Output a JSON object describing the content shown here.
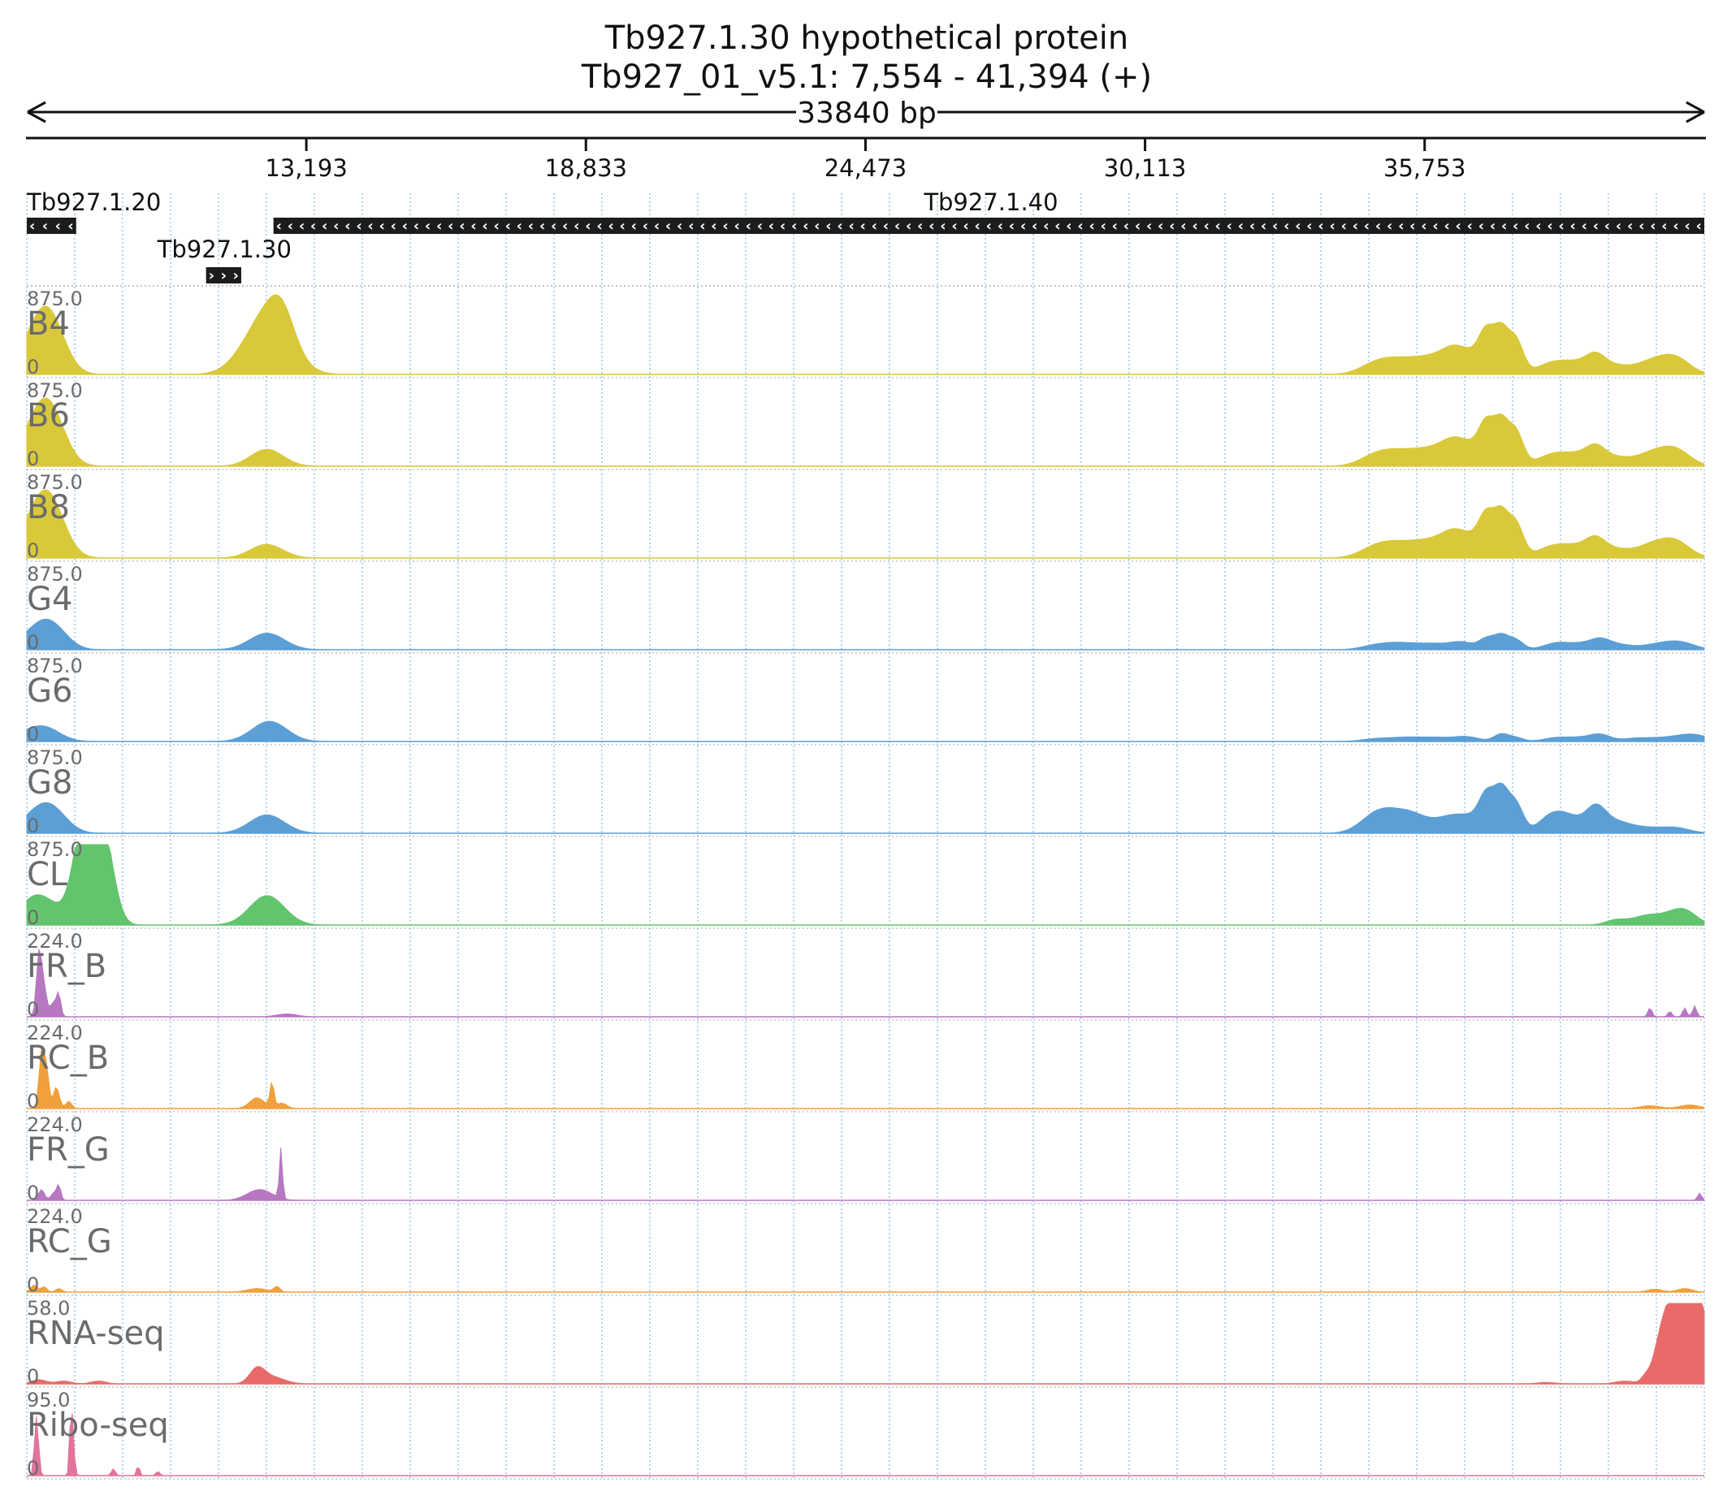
{
  "header": {
    "title": "Tb927.1.30  hypothetical protein",
    "subtitle": "Tb927_01_v5.1: 7,554 - 41,394 (+)",
    "span": "33840 bp"
  },
  "chart_data": {
    "type": "area",
    "x_range": [
      7554,
      41394
    ],
    "x_ticks": [
      {
        "value": 13193,
        "label": "13,193"
      },
      {
        "value": 18833,
        "label": "18,833"
      },
      {
        "value": 24473,
        "label": "24,473"
      },
      {
        "value": 30113,
        "label": "30,113"
      },
      {
        "value": 35753,
        "label": "35,753"
      }
    ],
    "genes": [
      {
        "name": "Tb927.1.20",
        "start": 7554,
        "end": 8550,
        "strand": "-",
        "row": 0
      },
      {
        "name": "Tb927.1.40",
        "start": 12530,
        "end": 41394,
        "strand": "-",
        "row": 0
      },
      {
        "name": "Tb927.1.30",
        "start": 11170,
        "end": 11880,
        "strand": "+",
        "row": 1
      }
    ],
    "tracks": [
      {
        "name": "B4",
        "max": 875.0,
        "max_label": "875.0",
        "min_label": "0",
        "color": "#d9c93a",
        "peaks": [
          [
            7800,
            450,
            350
          ],
          [
            8050,
            350,
            300
          ],
          [
            12400,
            650,
            450
          ],
          [
            12700,
            300,
            250
          ],
          [
            34700,
            90,
            300
          ],
          [
            35100,
            120,
            300
          ],
          [
            35600,
            130,
            300
          ],
          [
            36100,
            150,
            300
          ],
          [
            36400,
            180,
            250
          ],
          [
            36800,
            160,
            250
          ],
          [
            37000,
            350,
            150
          ],
          [
            37300,
            450,
            150
          ],
          [
            37600,
            350,
            150
          ],
          [
            38300,
            110,
            300
          ],
          [
            38800,
            110,
            300
          ],
          [
            39200,
            160,
            200
          ],
          [
            39600,
            90,
            300
          ],
          [
            40300,
            120,
            300
          ],
          [
            40800,
            180,
            300
          ]
        ]
      },
      {
        "name": "B6",
        "max": 875.0,
        "max_label": "875.0",
        "min_label": "0",
        "color": "#d9c93a",
        "peaks": [
          [
            7800,
            450,
            350
          ],
          [
            8050,
            350,
            300
          ],
          [
            12300,
            120,
            300
          ],
          [
            12550,
            80,
            300
          ],
          [
            34700,
            90,
            300
          ],
          [
            35100,
            120,
            300
          ],
          [
            35600,
            130,
            300
          ],
          [
            36100,
            150,
            300
          ],
          [
            36400,
            180,
            250
          ],
          [
            36800,
            160,
            250
          ],
          [
            37000,
            350,
            150
          ],
          [
            37300,
            450,
            150
          ],
          [
            37600,
            350,
            150
          ],
          [
            38300,
            110,
            300
          ],
          [
            38800,
            110,
            300
          ],
          [
            39200,
            160,
            200
          ],
          [
            39600,
            90,
            300
          ],
          [
            40300,
            120,
            300
          ],
          [
            40800,
            180,
            300
          ]
        ]
      },
      {
        "name": "B8",
        "max": 875.0,
        "max_label": "875.0",
        "min_label": "0",
        "color": "#d9c93a",
        "peaks": [
          [
            7800,
            450,
            350
          ],
          [
            8050,
            350,
            300
          ],
          [
            12300,
            100,
            300
          ],
          [
            12550,
            60,
            300
          ],
          [
            34700,
            90,
            300
          ],
          [
            35100,
            120,
            300
          ],
          [
            35600,
            130,
            300
          ],
          [
            36100,
            150,
            300
          ],
          [
            36400,
            180,
            250
          ],
          [
            36800,
            160,
            250
          ],
          [
            37000,
            350,
            150
          ],
          [
            37300,
            450,
            150
          ],
          [
            37600,
            350,
            150
          ],
          [
            38300,
            110,
            300
          ],
          [
            38800,
            110,
            300
          ],
          [
            39200,
            160,
            200
          ],
          [
            39600,
            90,
            300
          ],
          [
            40300,
            120,
            300
          ],
          [
            40800,
            180,
            300
          ]
        ]
      },
      {
        "name": "G4",
        "max": 875.0,
        "max_label": "875.0",
        "min_label": "0",
        "color": "#5b9fd6",
        "peaks": [
          [
            7800,
            220,
            350
          ],
          [
            8100,
            150,
            300
          ],
          [
            12400,
            180,
            350
          ],
          [
            34800,
            50,
            300
          ],
          [
            35300,
            60,
            300
          ],
          [
            35900,
            60,
            300
          ],
          [
            36500,
            80,
            250
          ],
          [
            37000,
            110,
            150
          ],
          [
            37300,
            150,
            150
          ],
          [
            37600,
            100,
            150
          ],
          [
            38400,
            70,
            250
          ],
          [
            38900,
            60,
            250
          ],
          [
            39300,
            100,
            200
          ],
          [
            39700,
            50,
            250
          ],
          [
            40400,
            50,
            300
          ],
          [
            40900,
            80,
            300
          ]
        ]
      },
      {
        "name": "G6",
        "max": 875.0,
        "max_label": "875.0",
        "min_label": "0",
        "color": "#5b9fd6",
        "peaks": [
          [
            7700,
            120,
            350
          ],
          [
            8000,
            70,
            300
          ],
          [
            12450,
            220,
            350
          ],
          [
            34800,
            30,
            300
          ],
          [
            35400,
            40,
            300
          ],
          [
            36000,
            40,
            300
          ],
          [
            36600,
            50,
            250
          ],
          [
            37300,
            80,
            150
          ],
          [
            37600,
            40,
            150
          ],
          [
            38400,
            40,
            250
          ],
          [
            38900,
            40,
            250
          ],
          [
            39300,
            70,
            200
          ],
          [
            40000,
            30,
            300
          ],
          [
            40700,
            40,
            400
          ],
          [
            41200,
            60,
            300
          ]
        ]
      },
      {
        "name": "G8",
        "max": 875.0,
        "max_label": "875.0",
        "min_label": "0",
        "color": "#5b9fd6",
        "peaks": [
          [
            7800,
            220,
            350
          ],
          [
            8100,
            150,
            300
          ],
          [
            12400,
            200,
            350
          ],
          [
            34700,
            150,
            300
          ],
          [
            35100,
            180,
            300
          ],
          [
            35500,
            120,
            250
          ],
          [
            35900,
            100,
            300
          ],
          [
            36300,
            120,
            250
          ],
          [
            36700,
            150,
            250
          ],
          [
            37000,
            350,
            150
          ],
          [
            37300,
            450,
            150
          ],
          [
            37600,
            300,
            150
          ],
          [
            38300,
            180,
            250
          ],
          [
            38700,
            150,
            250
          ],
          [
            39200,
            250,
            200
          ],
          [
            39600,
            120,
            300
          ],
          [
            40200,
            50,
            300
          ],
          [
            40800,
            60,
            300
          ]
        ]
      },
      {
        "name": "CL",
        "max": 875.0,
        "max_label": "875.0",
        "min_label": "0",
        "color": "#63c46e",
        "peaks": [
          [
            7650,
            200,
            300
          ],
          [
            8000,
            180,
            350
          ],
          [
            8650,
            750,
            200
          ],
          [
            8900,
            850,
            200
          ],
          [
            9150,
            650,
            200
          ],
          [
            12400,
            320,
            350
          ],
          [
            39600,
            50,
            200
          ],
          [
            40200,
            90,
            300
          ],
          [
            40700,
            70,
            300
          ],
          [
            41000,
            130,
            250
          ]
        ]
      },
      {
        "name": "FR_B",
        "max": 224.0,
        "max_label": "224.0",
        "min_label": "0",
        "color": "#b678c0",
        "peaks": [
          [
            7800,
            180,
            50
          ],
          [
            7900,
            80,
            50
          ],
          [
            8100,
            40,
            80
          ],
          [
            8200,
            50,
            40
          ],
          [
            12800,
            8,
            200
          ],
          [
            40300,
            25,
            40
          ],
          [
            40700,
            15,
            40
          ],
          [
            41000,
            25,
            40
          ],
          [
            41200,
            30,
            40
          ]
        ]
      },
      {
        "name": "RC_B",
        "max": 224.0,
        "max_label": "224.0",
        "min_label": "0",
        "color": "#f0a03c",
        "peaks": [
          [
            7850,
            150,
            50
          ],
          [
            7950,
            110,
            50
          ],
          [
            8150,
            60,
            60
          ],
          [
            8400,
            20,
            60
          ],
          [
            12200,
            30,
            150
          ],
          [
            12500,
            70,
            40
          ],
          [
            12700,
            15,
            100
          ],
          [
            40300,
            8,
            200
          ],
          [
            41100,
            10,
            200
          ]
        ]
      },
      {
        "name": "FR_G",
        "max": 224.0,
        "max_label": "224.0",
        "min_label": "0",
        "color": "#b678c0",
        "peaks": [
          [
            7850,
            30,
            60
          ],
          [
            8100,
            20,
            60
          ],
          [
            8200,
            40,
            40
          ],
          [
            12250,
            30,
            250
          ],
          [
            12680,
            140,
            30
          ],
          [
            41300,
            20,
            40
          ]
        ]
      },
      {
        "name": "RC_G",
        "max": 224.0,
        "max_label": "224.0",
        "min_label": "0",
        "color": "#f0a03c",
        "peaks": [
          [
            7700,
            20,
            60
          ],
          [
            7900,
            15,
            60
          ],
          [
            8200,
            10,
            60
          ],
          [
            12200,
            10,
            200
          ],
          [
            12600,
            15,
            60
          ],
          [
            40400,
            8,
            150
          ],
          [
            41000,
            10,
            150
          ]
        ]
      },
      {
        "name": "RNA-seq",
        "max": 58.0,
        "max_label": "58.0",
        "min_label": "0",
        "color": "#ea6a6a",
        "peaks": [
          [
            7800,
            3,
            150
          ],
          [
            8300,
            2,
            150
          ],
          [
            9000,
            2,
            150
          ],
          [
            12200,
            10,
            150
          ],
          [
            12500,
            5,
            250
          ],
          [
            38200,
            1,
            200
          ],
          [
            39800,
            2,
            200
          ],
          [
            40200,
            4,
            80
          ],
          [
            40500,
            25,
            150
          ],
          [
            40700,
            35,
            150
          ],
          [
            40900,
            40,
            150
          ],
          [
            41050,
            25,
            150
          ],
          [
            41150,
            50,
            150
          ],
          [
            41300,
            45,
            150
          ]
        ]
      },
      {
        "name": "Ribo-seq",
        "max": 95.0,
        "max_label": "95.0",
        "min_label": "0",
        "color": "#e2739c",
        "peaks": [
          [
            7750,
            70,
            40
          ],
          [
            8450,
            80,
            30
          ],
          [
            8500,
            20,
            30
          ],
          [
            9300,
            8,
            40
          ],
          [
            9800,
            12,
            30
          ],
          [
            10200,
            5,
            40
          ]
        ]
      }
    ]
  }
}
